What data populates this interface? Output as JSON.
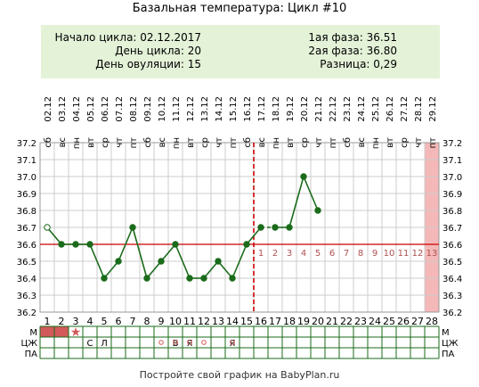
{
  "title": "Базальная температура: Цикл #10",
  "info": {
    "cycle_start": "Начало цикла: 02.12.2017",
    "cycle_day": "День цикла: 20",
    "ovulation_day": "День овуляции: 15",
    "phase1": "1ая фаза: 36.51",
    "phase2": "2ая фаза: 36.80",
    "difference": "Разница: 0,29"
  },
  "chart_data": {
    "type": "line",
    "dates": [
      "02.12",
      "03.12",
      "04.12",
      "05.12",
      "06.12",
      "07.12",
      "08.12",
      "09.12",
      "10.12",
      "11.12",
      "12.12",
      "13.12",
      "14.12",
      "15.12",
      "16.12",
      "17.12",
      "18.12",
      "19.12",
      "20.12",
      "21.12",
      "22.12",
      "23.12",
      "24.12",
      "25.12",
      "26.12",
      "27.12",
      "28.12",
      "29.12"
    ],
    "weekdays": [
      "сб",
      "вс",
      "пн",
      "вт",
      "ср",
      "чт",
      "пт",
      "сб",
      "вс",
      "пн",
      "вт",
      "ср",
      "чт",
      "пт",
      "сб",
      "вс",
      "пн",
      "вт",
      "ср",
      "чт",
      "пт",
      "сб",
      "вс",
      "пн",
      "вт",
      "ср",
      "чт",
      "пт"
    ],
    "days": [
      1,
      2,
      3,
      4,
      5,
      6,
      7,
      8,
      9,
      10,
      11,
      12,
      13,
      14,
      15,
      16,
      17,
      18,
      19,
      20,
      21,
      22,
      23,
      24,
      25,
      26,
      27,
      28
    ],
    "temperatures": [
      36.7,
      36.6,
      36.6,
      36.6,
      36.4,
      36.5,
      36.7,
      36.4,
      36.5,
      36.6,
      36.4,
      36.4,
      36.5,
      36.4,
      36.6,
      36.7,
      36.7,
      36.7,
      37.0,
      36.8,
      null,
      null,
      null,
      null,
      null,
      null,
      null,
      null
    ],
    "dashed_segment_days": [
      16,
      17
    ],
    "hollow_point_days": [
      1
    ],
    "yticks": [
      "37.2",
      "37.1",
      "37.0",
      "36.9",
      "36.8",
      "36.7",
      "36.6",
      "36.5",
      "36.4",
      "36.3",
      "36.2"
    ],
    "ylim": [
      36.2,
      37.2
    ],
    "coverline": 36.6,
    "ovulation_day": 15,
    "luteal_labels": [
      "1",
      "2",
      "3",
      "4",
      "5",
      "6",
      "7",
      "8",
      "9",
      "10",
      "11",
      "12",
      "13"
    ],
    "highlight_day": 28,
    "moon_day": 6,
    "colors": {
      "line": "#1a6b1a",
      "coverline": "#cc0000",
      "ovulation": "#cc0000",
      "highlight": "#f5b8b8",
      "luteal_text": "#b05050",
      "menstruation": "#d25a5a",
      "grid": "#cccccc"
    },
    "row_labels": [
      "М",
      "ЦЖ",
      "ПА"
    ],
    "menstruation_days": [
      1,
      2
    ],
    "star_day": 3,
    "cm_marks": [
      {
        "day": 4,
        "text": "С"
      },
      {
        "day": 5,
        "text": "Л"
      },
      {
        "day": 10,
        "text": "В"
      },
      {
        "day": 11,
        "text": "Я"
      },
      {
        "day": 14,
        "text": "Я"
      }
    ],
    "pa_days": [
      9,
      10,
      11,
      12,
      14
    ]
  },
  "footer": "Постройте свой график на BabyPlan.ru"
}
